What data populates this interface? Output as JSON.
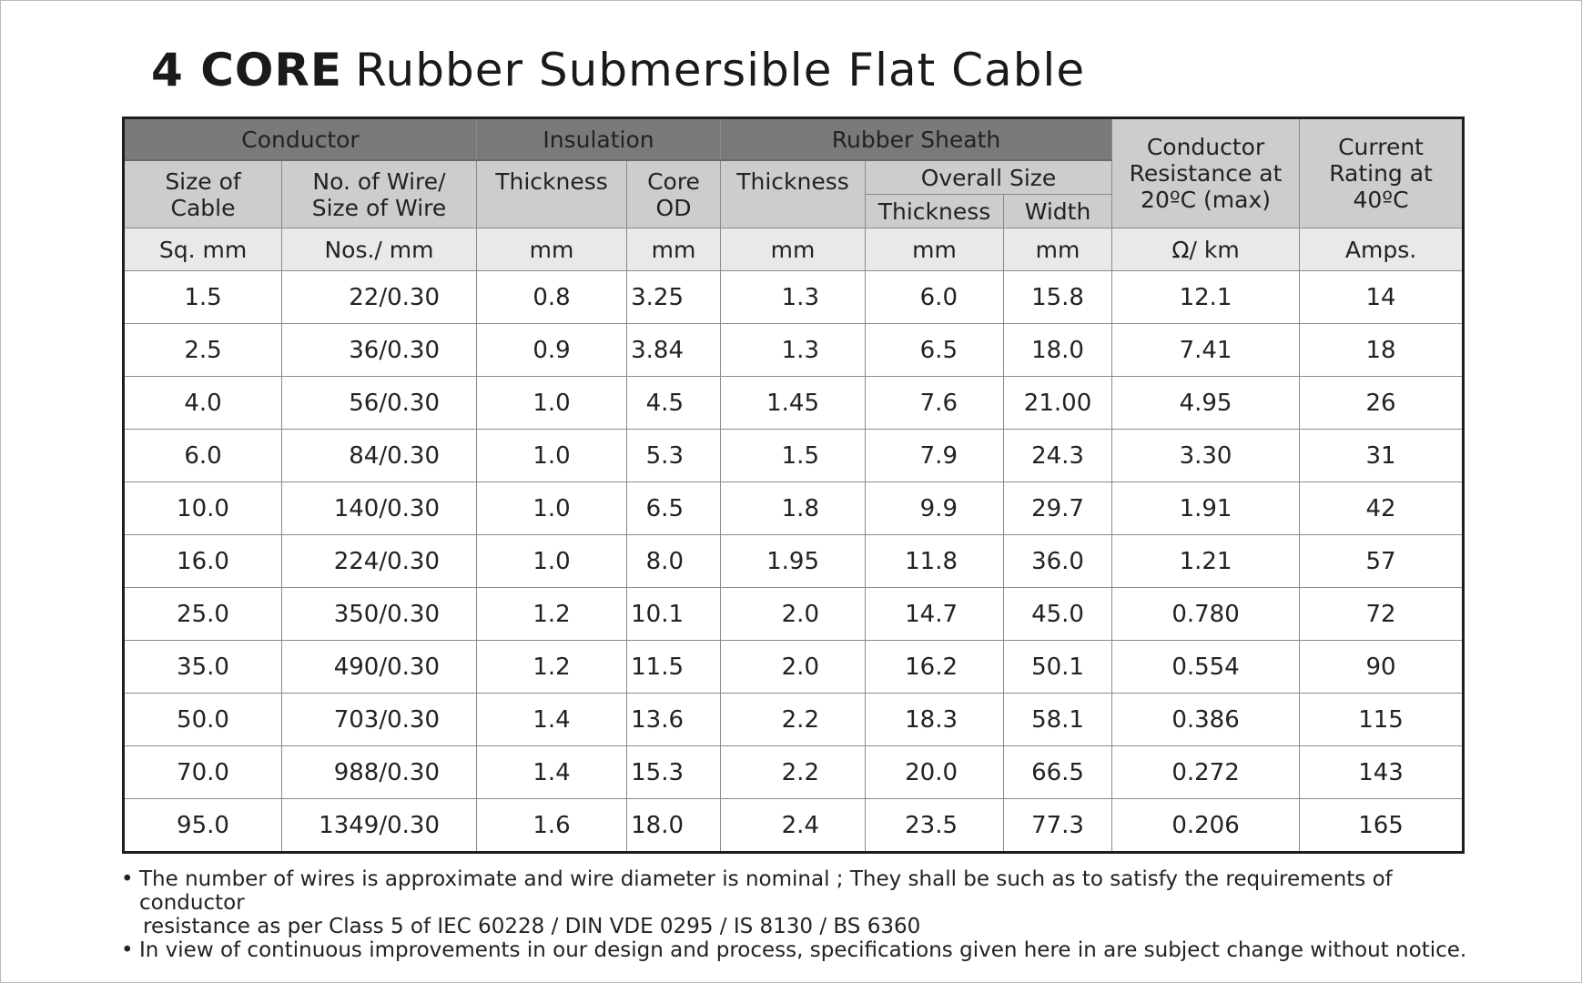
{
  "title": {
    "core": "4 CORE",
    "rest": "Rubber Submersible Flat Cable"
  },
  "headers": {
    "conductor": "Conductor",
    "insulation": "Insulation",
    "rubber_sheath": "Rubber Sheath",
    "conductor_resistance": [
      "Conductor",
      "Resistance at",
      "20ºC (max)"
    ],
    "current_rating": [
      "Current",
      "Rating at",
      "40ºC"
    ],
    "size_of_cable": [
      "Size of",
      "Cable"
    ],
    "no_of_wire": [
      "No. of Wire/",
      "Size of Wire"
    ],
    "ins_thickness": "Thickness",
    "core_od": [
      "Core",
      "OD"
    ],
    "sheath_thickness": "Thickness",
    "overall_size": "Overall Size",
    "overall_thickness": "Thickness",
    "overall_width": "Width"
  },
  "units": [
    "Sq. mm",
    "Nos./ mm",
    "mm",
    "mm",
    "mm",
    "mm",
    "mm",
    "Ω/ km",
    "Amps."
  ],
  "rows": [
    [
      "1.5",
      "22/0.30",
      "0.8",
      "3.25",
      "1.3",
      "6.0",
      "15.8",
      "12.1",
      "14"
    ],
    [
      "2.5",
      "36/0.30",
      "0.9",
      "3.84",
      "1.3",
      "6.5",
      "18.0",
      "7.41",
      "18"
    ],
    [
      "4.0",
      "56/0.30",
      "1.0",
      "4.5",
      "1.45",
      "7.6",
      "21.00",
      "4.95",
      "26"
    ],
    [
      "6.0",
      "84/0.30",
      "1.0",
      "5.3",
      "1.5",
      "7.9",
      "24.3",
      "3.30",
      "31"
    ],
    [
      "10.0",
      "140/0.30",
      "1.0",
      "6.5",
      "1.8",
      "9.9",
      "29.7",
      "1.91",
      "42"
    ],
    [
      "16.0",
      "224/0.30",
      "1.0",
      "8.0",
      "1.95",
      "11.8",
      "36.0",
      "1.21",
      "57"
    ],
    [
      "25.0",
      "350/0.30",
      "1.2",
      "10.1",
      "2.0",
      "14.7",
      "45.0",
      "0.780",
      "72"
    ],
    [
      "35.0",
      "490/0.30",
      "1.2",
      "11.5",
      "2.0",
      "16.2",
      "50.1",
      "0.554",
      "90"
    ],
    [
      "50.0",
      "703/0.30",
      "1.4",
      "13.6",
      "2.2",
      "18.3",
      "58.1",
      "0.386",
      "115"
    ],
    [
      "70.0",
      "988/0.30",
      "1.4",
      "15.3",
      "2.2",
      "20.0",
      "66.5",
      "0.272",
      "143"
    ],
    [
      "95.0",
      "1349/0.30",
      "1.6",
      "18.0",
      "2.4",
      "23.5",
      "77.3",
      "0.206",
      "165"
    ]
  ],
  "notes": [
    {
      "bullet": "•",
      "line1": "The number of wires is approximate and wire diameter is nominal ; They shall be such as to satisfy the requirements of conductor",
      "line2": "resistance as per Class 5 of IEC 60228 / DIN VDE 0295 / IS 8130 / BS 6360"
    },
    {
      "bullet": "•",
      "line1": "In view of continuous improvements in our design and process, specifications given here in are subject change without notice."
    }
  ]
}
